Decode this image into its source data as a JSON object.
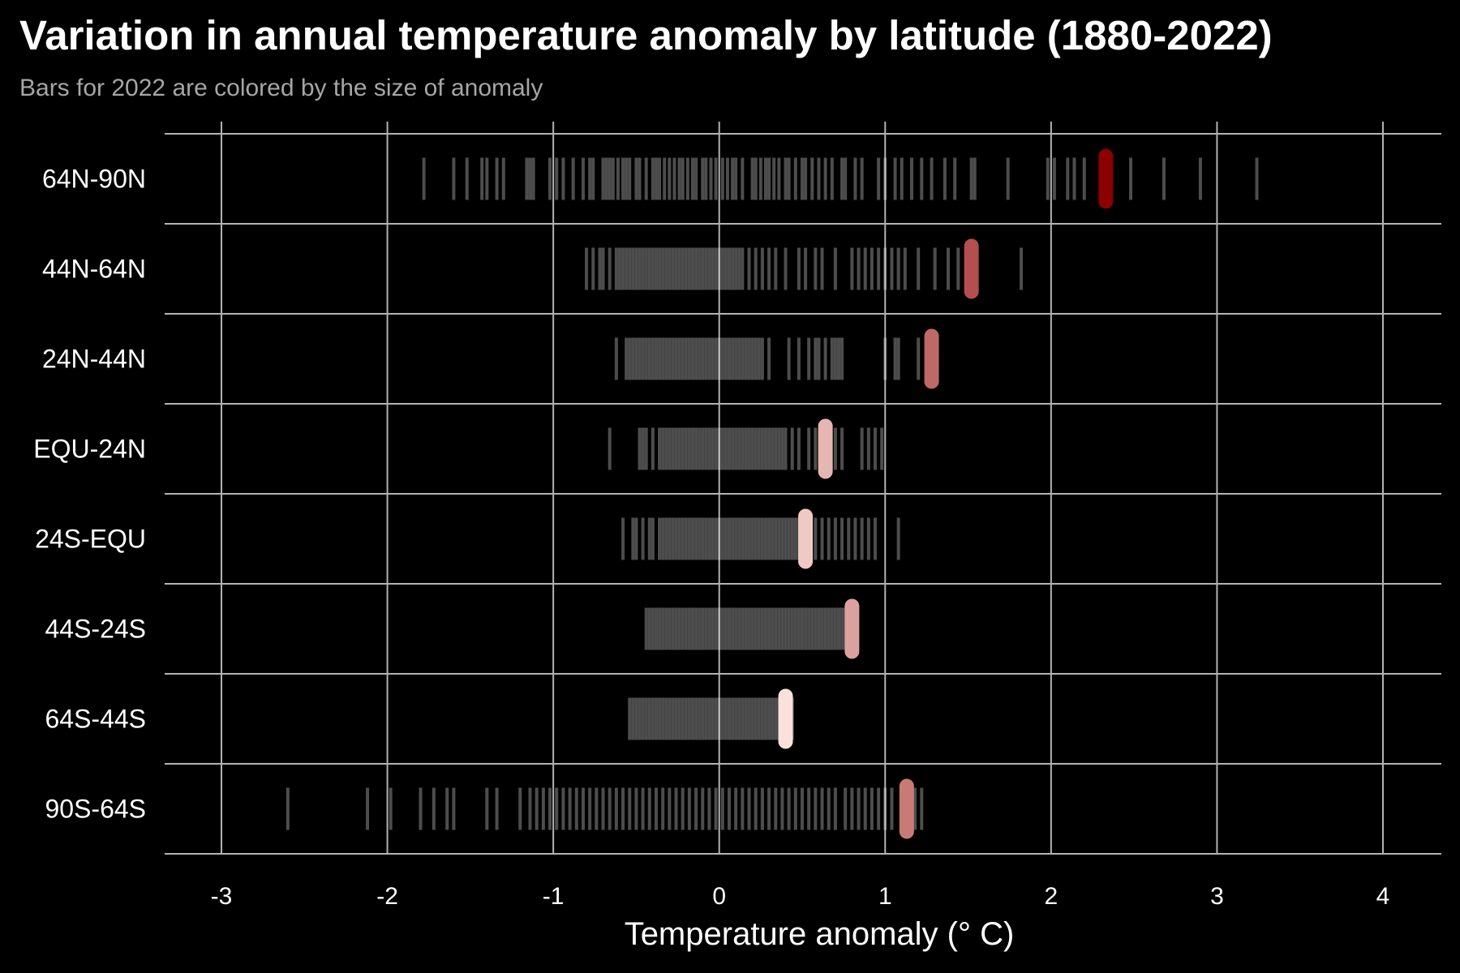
{
  "title": "Variation in annual temperature anomaly by latitude (1880-2022)",
  "subtitle": "Bars for 2022 are colored by the size of anomaly",
  "chart_data": {
    "type": "strip",
    "xlabel": "Temperature anomaly (° C)",
    "ylabel": "",
    "xlim": [
      -3.35,
      4.35
    ],
    "xticks": [
      "-3",
      "-2",
      "-1",
      "0",
      "1",
      "2",
      "3",
      "4"
    ],
    "grid": true,
    "colors": {
      "background": "#000000",
      "grid": "#b3b3b3",
      "history_mark": "#ffffff",
      "highlight_low": "#fbe1dc",
      "highlight_high": "#8b0000"
    },
    "categories": [
      "64N-90N",
      "44N-64N",
      "24N-44N",
      "EQU-24N",
      "24S-EQU",
      "44S-24S",
      "64S-44S",
      "90S-64S"
    ],
    "series": [
      {
        "category": "64N-90N",
        "highlight_2022": 2.33,
        "history": [
          -1.78,
          -1.6,
          -1.52,
          -1.43,
          -1.4,
          -1.34,
          -1.3,
          -1.16,
          -1.14,
          -1.12,
          -1.02,
          -0.98,
          -0.94,
          -0.88,
          -0.82,
          -0.78,
          -0.76,
          -0.7,
          -0.68,
          -0.66,
          -0.64,
          -0.61,
          -0.58,
          -0.56,
          -0.54,
          -0.5,
          -0.48,
          -0.44,
          -0.4,
          -0.38,
          -0.36,
          -0.33,
          -0.3,
          -0.27,
          -0.24,
          -0.22,
          -0.19,
          -0.16,
          -0.14,
          -0.1,
          -0.08,
          -0.05,
          -0.02,
          0.02,
          0.05,
          0.08,
          0.1,
          0.14,
          0.2,
          0.22,
          0.25,
          0.28,
          0.3,
          0.33,
          0.36,
          0.4,
          0.42,
          0.46,
          0.5,
          0.52,
          0.56,
          0.6,
          0.64,
          0.68,
          0.74,
          0.76,
          0.82,
          0.86,
          0.96,
          1.0,
          1.06,
          1.1,
          1.16,
          1.22,
          1.28,
          1.36,
          1.42,
          1.52,
          1.54,
          1.74,
          1.98,
          2.02,
          2.1,
          2.14,
          2.2,
          2.48,
          2.68,
          2.9,
          3.24
        ]
      },
      {
        "category": "44N-64N",
        "highlight_2022": 1.52,
        "history": [
          -0.8,
          -0.76,
          -0.72,
          -0.7,
          -0.66,
          -0.62,
          -0.6,
          -0.58,
          -0.56,
          -0.54,
          -0.52,
          -0.5,
          -0.48,
          -0.46,
          -0.44,
          -0.42,
          -0.4,
          -0.38,
          -0.36,
          -0.34,
          -0.32,
          -0.3,
          -0.28,
          -0.26,
          -0.24,
          -0.22,
          -0.2,
          -0.18,
          -0.16,
          -0.14,
          -0.12,
          -0.1,
          -0.08,
          -0.06,
          -0.04,
          -0.02,
          0.0,
          0.02,
          0.04,
          0.06,
          0.08,
          0.1,
          0.12,
          0.14,
          0.18,
          0.22,
          0.26,
          0.3,
          0.34,
          0.4,
          0.48,
          0.52,
          0.58,
          0.62,
          0.7,
          0.8,
          0.84,
          0.88,
          0.92,
          0.96,
          1.0,
          1.04,
          1.08,
          1.12,
          1.2,
          1.3,
          1.38,
          1.44,
          1.82
        ]
      },
      {
        "category": "24N-44N",
        "highlight_2022": 1.28,
        "history": [
          -0.62,
          -0.56,
          -0.54,
          -0.52,
          -0.5,
          -0.48,
          -0.46,
          -0.44,
          -0.42,
          -0.4,
          -0.38,
          -0.36,
          -0.34,
          -0.32,
          -0.3,
          -0.28,
          -0.26,
          -0.24,
          -0.22,
          -0.2,
          -0.18,
          -0.16,
          -0.14,
          -0.12,
          -0.1,
          -0.08,
          -0.06,
          -0.04,
          -0.02,
          0.0,
          0.02,
          0.04,
          0.06,
          0.08,
          0.1,
          0.12,
          0.14,
          0.16,
          0.18,
          0.2,
          0.22,
          0.24,
          0.26,
          0.3,
          0.42,
          0.48,
          0.54,
          0.58,
          0.6,
          0.64,
          0.68,
          0.7,
          0.72,
          0.74,
          1.0,
          1.06,
          1.08,
          1.2
        ]
      },
      {
        "category": "EQU-24N",
        "highlight_2022": 0.64,
        "history": [
          -0.66,
          -0.48,
          -0.46,
          -0.44,
          -0.4,
          -0.36,
          -0.34,
          -0.32,
          -0.3,
          -0.28,
          -0.26,
          -0.24,
          -0.22,
          -0.2,
          -0.18,
          -0.16,
          -0.14,
          -0.12,
          -0.1,
          -0.08,
          -0.06,
          -0.04,
          -0.02,
          0.0,
          0.02,
          0.04,
          0.06,
          0.08,
          0.1,
          0.12,
          0.14,
          0.16,
          0.18,
          0.2,
          0.22,
          0.24,
          0.26,
          0.28,
          0.3,
          0.32,
          0.34,
          0.36,
          0.38,
          0.4,
          0.44,
          0.48,
          0.54,
          0.58,
          0.7,
          0.74,
          0.86,
          0.9,
          0.94,
          0.98
        ]
      },
      {
        "category": "24S-EQU",
        "highlight_2022": 0.52,
        "history": [
          -0.58,
          -0.52,
          -0.5,
          -0.46,
          -0.42,
          -0.4,
          -0.36,
          -0.34,
          -0.32,
          -0.3,
          -0.28,
          -0.26,
          -0.24,
          -0.22,
          -0.2,
          -0.18,
          -0.16,
          -0.14,
          -0.12,
          -0.1,
          -0.08,
          -0.06,
          -0.04,
          -0.02,
          0.0,
          0.02,
          0.04,
          0.06,
          0.08,
          0.1,
          0.12,
          0.14,
          0.16,
          0.18,
          0.2,
          0.22,
          0.24,
          0.26,
          0.28,
          0.3,
          0.32,
          0.34,
          0.36,
          0.38,
          0.4,
          0.42,
          0.44,
          0.46,
          0.48,
          0.5,
          0.58,
          0.62,
          0.66,
          0.7,
          0.74,
          0.78,
          0.82,
          0.86,
          0.9,
          0.94,
          1.08
        ]
      },
      {
        "category": "44S-24S",
        "highlight_2022": 0.8,
        "history": [
          -0.44,
          -0.42,
          -0.4,
          -0.38,
          -0.36,
          -0.34,
          -0.32,
          -0.3,
          -0.28,
          -0.26,
          -0.24,
          -0.22,
          -0.2,
          -0.18,
          -0.16,
          -0.14,
          -0.12,
          -0.1,
          -0.08,
          -0.06,
          -0.04,
          -0.02,
          0.0,
          0.02,
          0.04,
          0.06,
          0.08,
          0.1,
          0.12,
          0.14,
          0.16,
          0.18,
          0.2,
          0.22,
          0.24,
          0.26,
          0.28,
          0.3,
          0.32,
          0.34,
          0.36,
          0.38,
          0.4,
          0.42,
          0.44,
          0.46,
          0.48,
          0.5,
          0.52,
          0.54,
          0.56,
          0.58,
          0.6,
          0.62,
          0.64,
          0.66,
          0.68,
          0.7,
          0.72,
          0.74,
          0.76,
          0.78
        ]
      },
      {
        "category": "64S-44S",
        "highlight_2022": 0.4,
        "history": [
          -0.54,
          -0.52,
          -0.5,
          -0.48,
          -0.46,
          -0.44,
          -0.42,
          -0.4,
          -0.38,
          -0.36,
          -0.34,
          -0.32,
          -0.3,
          -0.28,
          -0.26,
          -0.24,
          -0.22,
          -0.2,
          -0.18,
          -0.16,
          -0.14,
          -0.12,
          -0.1,
          -0.08,
          -0.06,
          -0.04,
          -0.02,
          0.0,
          0.02,
          0.04,
          0.06,
          0.08,
          0.1,
          0.12,
          0.14,
          0.16,
          0.18,
          0.2,
          0.22,
          0.24,
          0.26,
          0.28,
          0.3,
          0.32,
          0.34,
          0.36,
          0.38,
          0.42,
          0.44
        ]
      },
      {
        "category": "90S-64S",
        "highlight_2022": 1.13,
        "history": [
          -2.6,
          -2.12,
          -1.98,
          -1.8,
          -1.72,
          -1.64,
          -1.6,
          -1.4,
          -1.34,
          -1.2,
          -1.14,
          -1.1,
          -1.06,
          -1.02,
          -0.98,
          -0.94,
          -0.9,
          -0.86,
          -0.82,
          -0.78,
          -0.74,
          -0.7,
          -0.66,
          -0.62,
          -0.58,
          -0.54,
          -0.5,
          -0.46,
          -0.42,
          -0.38,
          -0.34,
          -0.3,
          -0.26,
          -0.22,
          -0.18,
          -0.14,
          -0.1,
          -0.06,
          -0.02,
          0.02,
          0.06,
          0.1,
          0.14,
          0.18,
          0.22,
          0.26,
          0.3,
          0.34,
          0.38,
          0.42,
          0.46,
          0.5,
          0.54,
          0.58,
          0.62,
          0.66,
          0.7,
          0.76,
          0.8,
          0.84,
          0.88,
          0.92,
          0.96,
          1.0,
          1.04,
          1.18,
          1.22
        ]
      }
    ]
  }
}
